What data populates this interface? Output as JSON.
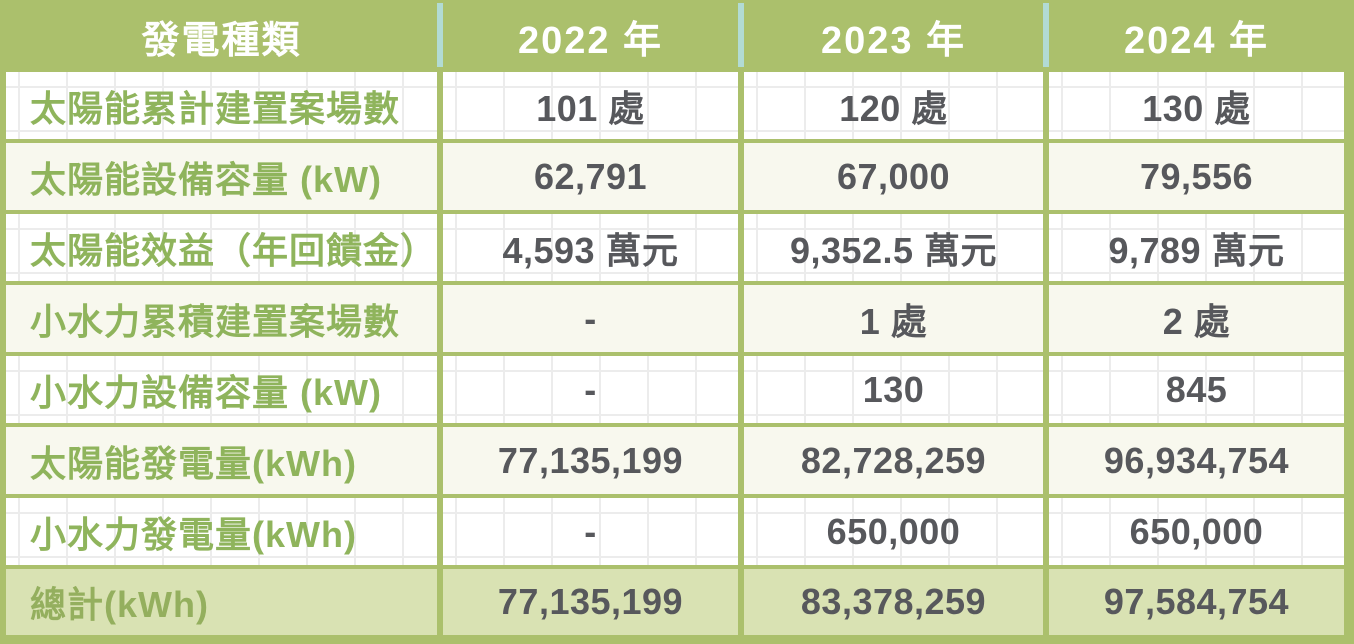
{
  "chart_data": {
    "type": "table",
    "columns": [
      "發電種類",
      "2022 年",
      "2023 年",
      "2024 年"
    ],
    "rows": [
      [
        "太陽能累計建置案場數",
        "101 處",
        "120 處",
        "130 處"
      ],
      [
        "太陽能設備容量 (kW)",
        "62,791",
        "67,000",
        "79,556"
      ],
      [
        "太陽能效益（年回饋金）",
        "4,593 萬元",
        "9,352.5 萬元",
        "9,789 萬元"
      ],
      [
        "小水力累積建置案場數",
        "-",
        "1 處",
        "2 處"
      ],
      [
        "小水力設備容量 (kW)",
        "-",
        "130",
        "845"
      ],
      [
        "太陽能發電量(kWh)",
        "77,135,199",
        "82,728,259",
        "96,934,754"
      ],
      [
        "小水力發電量(kWh)",
        "-",
        "650,000",
        "650,000"
      ]
    ],
    "total_row": [
      "總計(kWh)",
      "77,135,199",
      "83,378,259",
      "97,584,754"
    ]
  },
  "colors": {
    "olive_header_border": "#abc06c",
    "header_text": "#ffffff",
    "header_divider_teal": "#b2dbd4",
    "label_green": "#8fb45c",
    "value_gray": "#57585c",
    "cream_row_bg": "#f8f8ee",
    "white_row_bg": "#ffffff",
    "grid_line": "#ececec",
    "total_row_bg": "#d9e2b3"
  }
}
